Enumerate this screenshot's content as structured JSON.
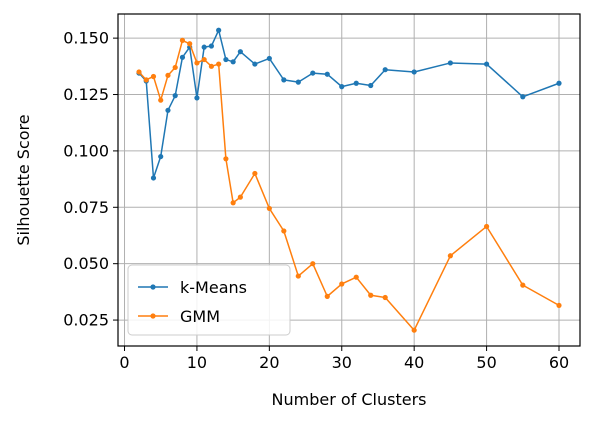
{
  "chart_data": {
    "type": "line",
    "title": "",
    "xlabel": "Number of Clusters",
    "ylabel": "Silhouette Score",
    "xlim": [
      -0.9,
      62.9
    ],
    "ylim": [
      0.0135,
      0.1607
    ],
    "xticks": [
      0,
      10,
      20,
      30,
      40,
      50,
      60
    ],
    "yticks": [
      0.025,
      0.05,
      0.075,
      0.1,
      0.125,
      0.15
    ],
    "xtick_labels": [
      "0",
      "10",
      "20",
      "30",
      "40",
      "50",
      "60"
    ],
    "ytick_labels": [
      "0.025",
      "0.050",
      "0.075",
      "0.100",
      "0.125",
      "0.150"
    ],
    "grid": true,
    "legend": "lower-left",
    "x": [
      2,
      3,
      4,
      5,
      6,
      7,
      8,
      9,
      10,
      11,
      12,
      13,
      14,
      15,
      16,
      18,
      20,
      22,
      24,
      26,
      28,
      30,
      32,
      34,
      36,
      40,
      45,
      50,
      55,
      60
    ],
    "series": [
      {
        "name": "k-Means",
        "color": "#1f77b4",
        "values": [
          0.1345,
          0.131,
          0.088,
          0.0975,
          0.118,
          0.1245,
          0.1415,
          0.146,
          0.1235,
          0.146,
          0.1465,
          0.1535,
          0.1405,
          0.1395,
          0.144,
          0.1385,
          0.141,
          0.1315,
          0.1305,
          0.1345,
          0.134,
          0.1285,
          0.13,
          0.129,
          0.136,
          0.135,
          0.139,
          0.1385,
          0.124,
          0.13
        ]
      },
      {
        "name": "GMM",
        "color": "#ff7f0e",
        "values": [
          0.135,
          0.1315,
          0.133,
          0.1225,
          0.1335,
          0.137,
          0.149,
          0.1475,
          0.139,
          0.1405,
          0.1375,
          0.1385,
          0.0965,
          0.077,
          0.0795,
          0.09,
          0.0745,
          0.0645,
          0.0445,
          0.05,
          0.0355,
          0.041,
          0.044,
          0.036,
          0.035,
          0.0205,
          0.0535,
          0.0665,
          0.0405,
          0.0315
        ]
      }
    ]
  }
}
